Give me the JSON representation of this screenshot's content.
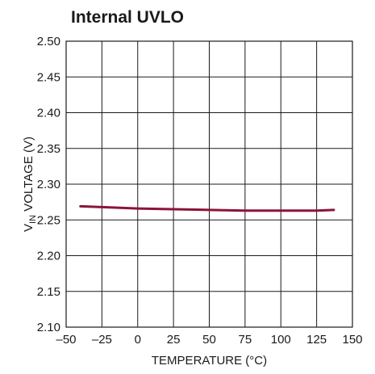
{
  "chart_data": {
    "type": "line",
    "title": "Internal UVLO",
    "xlabel": "TEMPERATURE (°C)",
    "ylabel": {
      "main": "V",
      "subscript": "IN",
      "rest": " VOLTAGE (V)"
    },
    "xlim": [
      -50,
      150
    ],
    "ylim": [
      2.1,
      2.5
    ],
    "x_ticks": [
      "–50",
      "–25",
      "0",
      "25",
      "50",
      "75",
      "100",
      "125",
      "150"
    ],
    "x_tick_values": [
      -50,
      -25,
      0,
      25,
      50,
      75,
      100,
      125,
      150
    ],
    "y_ticks": [
      "2.50",
      "2.45",
      "2.40",
      "2.35",
      "2.30",
      "2.25",
      "2.20",
      "2.15",
      "2.10"
    ],
    "y_tick_values": [
      2.5,
      2.45,
      2.4,
      2.35,
      2.3,
      2.25,
      2.2,
      2.15,
      2.1
    ],
    "grid": true,
    "series": [
      {
        "color": "#8b1538",
        "x": [
          -40,
          -25,
          0,
          25,
          50,
          75,
          100,
          125,
          137
        ],
        "y": [
          2.269,
          2.268,
          2.266,
          2.265,
          2.264,
          2.263,
          2.263,
          2.263,
          2.264
        ]
      }
    ]
  }
}
